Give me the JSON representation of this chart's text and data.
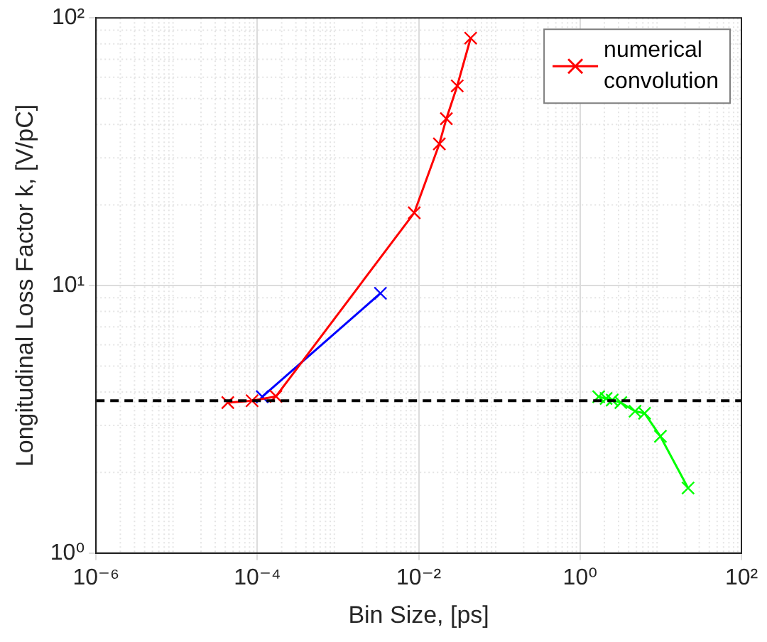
{
  "chart_data": {
    "type": "line",
    "xlabel": "Bin Size, [ps]",
    "ylabel": "Longitudinal Loss Factor k, [V/pC]",
    "log": "xy",
    "grid": true,
    "legend": "top right",
    "marker": "cross",
    "line_style": "solid",
    "xlim": [
      1e-06,
      100
    ],
    "ylim": [
      1,
      100
    ],
    "xticks": [
      {
        "value": 1e-06,
        "label": "10⁻⁶"
      },
      {
        "value": 0.0001,
        "label": "10⁻⁴"
      },
      {
        "value": 0.01,
        "label": "10⁻²"
      },
      {
        "value": 1,
        "label": "10⁰"
      },
      {
        "value": 100,
        "label": "10²"
      }
    ],
    "yticks": [
      {
        "value": 1,
        "label": "10⁰"
      },
      {
        "value": 10,
        "label": "10¹"
      },
      {
        "value": 100,
        "label": "10²"
      }
    ],
    "series": [
      {
        "name": "numerical convolution",
        "color": "#ff0000",
        "x": [
          4.3e-05,
          8.6e-05,
          0.00017,
          0.0088,
          0.018,
          0.022,
          0.03,
          0.044
        ],
        "values": [
          3.65,
          3.71,
          3.85,
          18.7,
          33.8,
          42,
          55.7,
          84
        ]
      },
      {
        "color": "#00ff00",
        "x": [
          1.7,
          2.1,
          2.5,
          3.2,
          4.8,
          6.3,
          9.9,
          21.8
        ],
        "values": [
          3.84,
          3.78,
          3.73,
          3.65,
          3.39,
          3.33,
          2.73,
          1.75
        ]
      },
      {
        "color": "#0000ff",
        "x": [
          0.000115,
          0.00335
        ],
        "values": [
          3.84,
          9.35
        ]
      }
    ],
    "ref_lines": [
      {
        "axis": "y",
        "value": 3.71,
        "color": "#000000",
        "line_style": "dashed"
      }
    ]
  }
}
